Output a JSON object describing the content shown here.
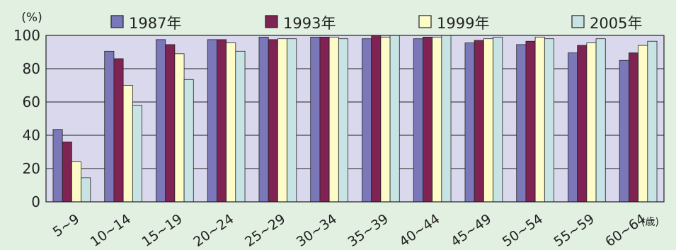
{
  "chart_data": {
    "type": "bar",
    "ylabel": "(%)",
    "xunit": "(歳)",
    "ylim": [
      0,
      100
    ],
    "yticks": [
      0,
      20,
      40,
      60,
      80,
      100
    ],
    "grid": true,
    "legend_position": "top",
    "categories": [
      "5~9",
      "10~14",
      "15~19",
      "20~24",
      "25~29",
      "30~34",
      "35~39",
      "40~44",
      "45~49",
      "50~54",
      "55~59",
      "60~64"
    ],
    "series": [
      {
        "name": "1987年",
        "color": "#7a78b8",
        "values": [
          43.5,
          90.5,
          97.5,
          97.5,
          99.0,
          99.0,
          98.0,
          98.0,
          95.5,
          94.5,
          89.5,
          85.0
        ]
      },
      {
        "name": "1993年",
        "color": "#7e2352",
        "values": [
          36.0,
          86.0,
          94.5,
          97.5,
          97.5,
          99.0,
          100.0,
          99.0,
          97.0,
          96.5,
          94.0,
          89.5
        ]
      },
      {
        "name": "1999年",
        "color": "#fdfcc8",
        "values": [
          24.0,
          70.0,
          89.0,
          95.5,
          98.0,
          99.0,
          99.0,
          99.0,
          98.0,
          99.0,
          95.5,
          94.0
        ]
      },
      {
        "name": "2005年",
        "color": "#c7e3e4",
        "values": [
          14.5,
          58.0,
          73.5,
          90.5,
          98.0,
          98.0,
          100.0,
          100.0,
          99.0,
          98.0,
          98.0,
          96.5
        ]
      }
    ]
  }
}
